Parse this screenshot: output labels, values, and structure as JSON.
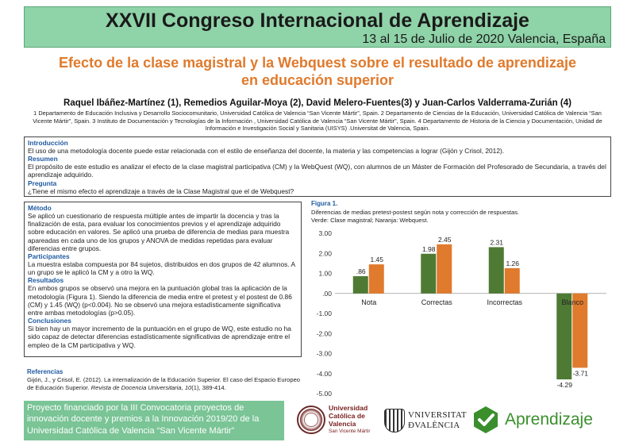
{
  "header": {
    "title": "XXVII Congreso Internacional de Aprendizaje",
    "subtitle": "13 al 15 de Julio de 2020 Valencia, España"
  },
  "paper": {
    "title_line1": "Efecto de la clase magistral y la Webquest sobre el resultado de aprendizaje",
    "title_line2": "en educación superior",
    "authors": "Raquel Ibáñez-Martínez (1), Remedios Aguilar-Moya (2), David Melero-Fuentes(3) y Juan-Carlos Valderrama-Zurián (4)",
    "affiliations": "1 Departamento de Educación Inclusiva y Desarrollo Sociocomunitario, Universidad Católica de Valencia “San Vicente Mártir”, Spain. 2 Departamento de Ciencias de la Educación, Universidad Católica de Valencia “San Vicente Mártir”, Spain. 3 Instituto de Documentación y Tecnologías de la Información , Universidad Católica de Valencia “San Vicente Mártir”, Spain.  4 Departamento de Historia de la Ciencia y Documentación, Unidad de Información e Investigación Social y Sanitaria (UISYS) .Universitat de Valencia, Spain."
  },
  "intro_box": {
    "introduccion_head": "Introducción",
    "introduccion_text": "El uso de una metodología docente puede estar relacionada con el estilo de enseñanza del docente, la materia y las competencias a lograr (Gijón y Crisol, 2012).",
    "resumen_head": "Resumen",
    "resumen_text": "El propósito de este estudio es analizar el efecto de la clase magistral participativa (CM) y la WebQuest (WQ), con alumnos de un Máster de Formación del Profesorado de Secundaria, a través del aprendizaje adquirido.",
    "pregunta_head": "Pregunta",
    "pregunta_text": "¿Tiene el mismo efecto el aprendizaje a través de la Clase Magistral que el de Webquest?"
  },
  "method_box": {
    "metodo_head": "Método",
    "metodo_text": "Se aplicó un cuestionario de respuesta múltiple antes de impartir la docencia y tras la finalización de esta, para evaluar los conocimientos previos y el aprendizaje adquirido sobre educación en valores. Se aplicó una prueba de diferencia de medias para muestra apareadas en cada uno de los grupos y ANOVA de medidas repetidas para evaluar diferencias entre grupos.",
    "participantes_head": "Participantes",
    "participantes_text": "La muestra estaba compuesta por 84 sujetos, distribuidos en dos grupos de 42 alumnos. A un grupo se le aplicó la CM y a otro la WQ.",
    "resultados_head": "Resultados",
    "resultados_text": "En ambos grupos se observó una mejora en la puntuación global tras la aplicación de la metodología (Figura 1). Siendo la diferencia de media entre el pretest y el postest de 0.86 (CM) y 1.45 (WQ) (p<0.004). No se observó una mejora estadísticamente significativa entre ambas metodologías (p>0.05).",
    "conclusiones_head": "Conclusiones",
    "conclusiones_text": "Si bien hay un mayor incremento de la puntuación en el grupo de WQ, este estudio no ha sido capaz de detectar diferencias estadísticamente significativas de aprendizaje entre el empleo de la CM participativa y WQ."
  },
  "references": {
    "head": "Referencias",
    "text_a": "Gijón, J., y Crisol, E. (2012). La internalización de la Educación Superior. El caso del Espacio Europeo de Educación Superior. ",
    "journal": "Revista de Docencia Universitaria, 10",
    "text_b": "(1), 389-414."
  },
  "footer": {
    "text": "Proyecto financiado por la III Convocatoria proyectos de innovación docente y premios a la Innovación 2019/20 de la Universidad Católica de Valencia “San Vicente Mártir”"
  },
  "figure": {
    "label": "Figura 1.",
    "caption_line1": "Diferencias de medias pretest-postest según nota y corrección de respuestas.",
    "caption_line2": "Verde: Clase magistral; Naranja: Webquest."
  },
  "chart_data": {
    "type": "bar",
    "categories": [
      "Nota",
      "Correctas",
      "Incorrectas",
      "Blanco"
    ],
    "series": [
      {
        "values": [
          0.86,
          1.98,
          2.31,
          -4.29
        ],
        "labels": [
          ".86",
          "1.98",
          "2.31",
          "-4.29"
        ]
      },
      {
        "values": [
          1.45,
          2.45,
          1.26,
          -3.71
        ],
        "labels": [
          "1.45",
          "2.45",
          "1.26",
          "-3.71"
        ]
      }
    ],
    "colors": [
      "#4f7a34",
      "#e07a2c"
    ],
    "ylim": [
      -5,
      3
    ],
    "yticks": [
      3,
      2,
      1,
      0,
      -1,
      -2,
      -3,
      -4,
      -5
    ],
    "ytick_labels": [
      "3.00",
      "2.00",
      "1.00",
      ".00",
      "-1.00",
      "-2.00",
      "-3.00",
      "-4.00",
      "-5.00"
    ],
    "grid": false,
    "legend": "none"
  },
  "logos": {
    "ucv_line1": "Universidad",
    "ucv_line2": "Católica de",
    "ucv_line3": "Valencia",
    "ucv_line4": "San Vicente Mártir",
    "uv_line1": "VNIVERSITAT",
    "uv_line2": "ÐVALÈNCIA",
    "apr_name": "Aprendizaje",
    "apr_color": "#3a8f2c"
  }
}
